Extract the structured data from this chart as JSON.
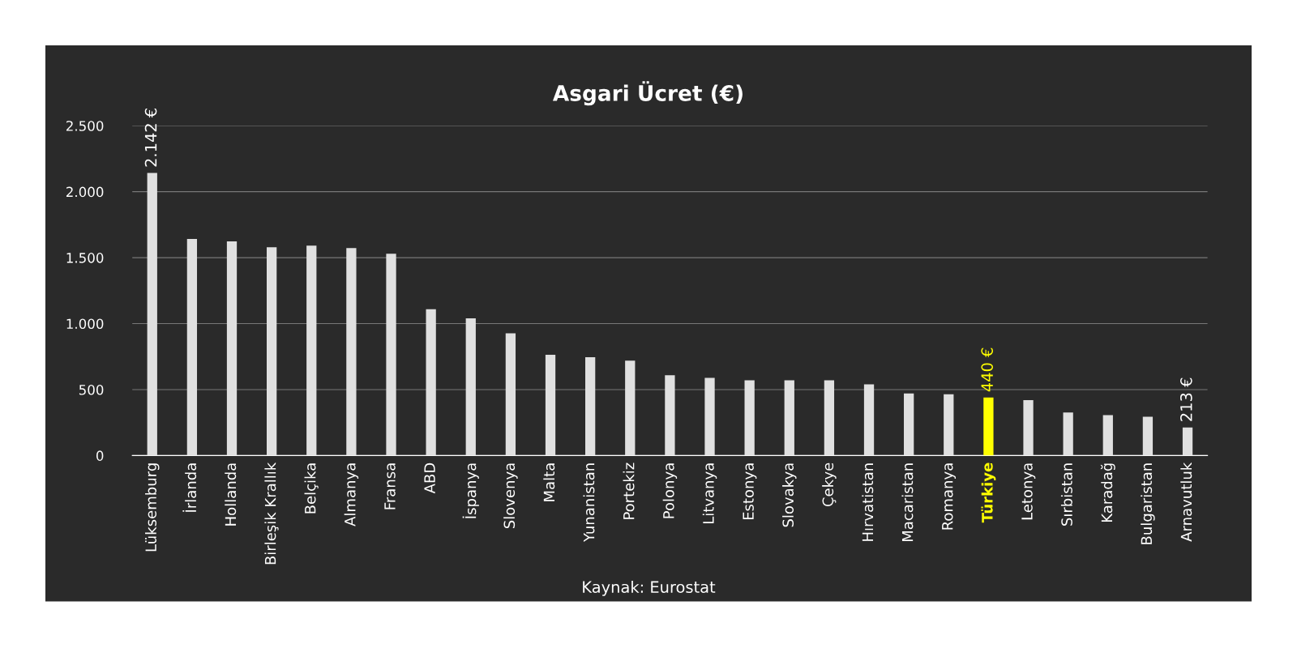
{
  "chart_data": {
    "type": "bar",
    "title": "Asgari Ücret (€)",
    "categories": [
      "Lüksemburg",
      "İrlanda",
      "Hollanda",
      "Birleşik Krallık",
      "Belçika",
      "Almanya",
      "Fransa",
      "ABD",
      "İspanya",
      "Slovenya",
      "Malta",
      "Yunanistan",
      "Portekiz",
      "Polonya",
      "Litvanya",
      "Estonya",
      "Slovakya",
      "Çekye",
      "Hırvatistan",
      "Macaristan",
      "Romanya",
      "Türkiye",
      "Letonya",
      "Sırbistan",
      "Karadağ",
      "Bulgaristan",
      "Arnavutluk"
    ],
    "values": [
      2142,
      1642,
      1623,
      1579,
      1591,
      1573,
      1529,
      1109,
      1040,
      927,
      764,
      746,
      720,
      608,
      589,
      570,
      570,
      570,
      539,
      470,
      464,
      440,
      420,
      326,
      307,
      294,
      213
    ],
    "colors": [
      "#e0e0e0",
      "#e0e0e0",
      "#e0e0e0",
      "#e0e0e0",
      "#e0e0e0",
      "#e0e0e0",
      "#e0e0e0",
      "#e0e0e0",
      "#e0e0e0",
      "#e0e0e0",
      "#e0e0e0",
      "#e0e0e0",
      "#e0e0e0",
      "#e0e0e0",
      "#e0e0e0",
      "#e0e0e0",
      "#e0e0e0",
      "#e0e0e0",
      "#e0e0e0",
      "#e0e0e0",
      "#e0e0e0",
      "#ffff00",
      "#e0e0e0",
      "#e0e0e0",
      "#e0e0e0",
      "#e0e0e0",
      "#e0e0e0"
    ],
    "value_labels": [
      "2.142 €",
      null,
      null,
      null,
      null,
      null,
      null,
      null,
      null,
      null,
      null,
      null,
      null,
      null,
      null,
      null,
      null,
      null,
      null,
      null,
      null,
      "440 €",
      null,
      null,
      null,
      null,
      "213 €"
    ],
    "ylim": [
      0,
      2500
    ],
    "yticks": [
      0,
      {
        "value": 500,
        "label": "500"
      },
      {
        "value": 1000,
        "label": "1.000"
      },
      {
        "value": 1500,
        "label": "1.500"
      },
      {
        "value": 2000,
        "label": "2.000"
      },
      {
        "value": 2500,
        "label": "2.500"
      }
    ],
    "grid": "y",
    "annotations": [
      "Kaynak: Eurostat"
    ]
  }
}
